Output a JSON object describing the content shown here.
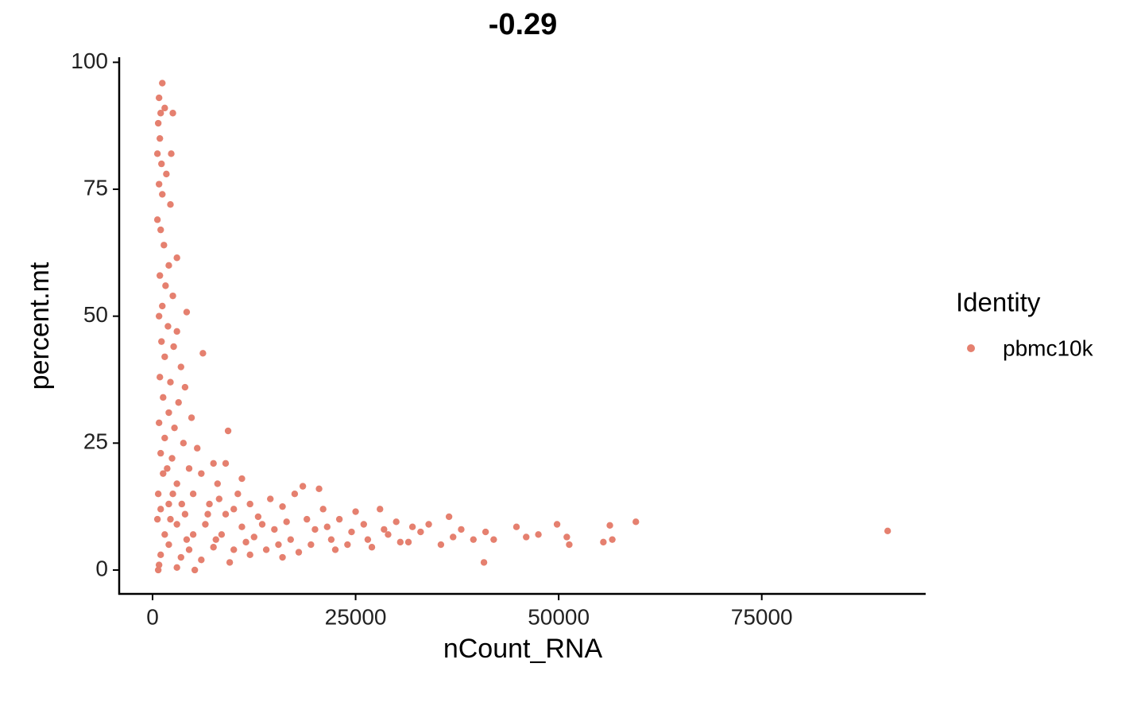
{
  "chart_data": {
    "type": "scatter",
    "title": "-0.29",
    "x_label": "nCount_RNA",
    "y_label": "percent.mt",
    "legend_title": "Identity",
    "legend_position": "right",
    "grid": false,
    "xlim": [
      -4108,
      95180
    ],
    "ylim": [
      -4.7,
      101
    ],
    "xticks": [
      0,
      25000,
      50000,
      75000
    ],
    "yticks": [
      0,
      25,
      50,
      75,
      100
    ],
    "series": [
      {
        "name": "pbmc10k",
        "color": "#e5806f",
        "x": [
          1200,
          800,
          1000,
          1500,
          2500,
          700,
          900,
          600,
          2300,
          1100,
          1700,
          800,
          1200,
          2200,
          600,
          1000,
          1400,
          2000,
          3000,
          900,
          1600,
          2500,
          1200,
          4200,
          800,
          1900,
          3000,
          1100,
          2600,
          6200,
          1500,
          3500,
          900,
          2200,
          4000,
          1300,
          3200,
          2000,
          4800,
          800,
          2700,
          9300,
          1500,
          3800,
          5500,
          1000,
          2400,
          7500,
          4500,
          9000,
          1300,
          6000,
          11000,
          3000,
          8000,
          18500,
          20500,
          700,
          5000,
          10500,
          14500,
          17500,
          2000,
          7000,
          12000,
          16000,
          21000,
          25000,
          28000,
          36500,
          1000,
          4000,
          9000,
          13000,
          19000,
          23000,
          30000,
          34000,
          38000,
          600,
          3000,
          6500,
          11000,
          15000,
          20000,
          24500,
          29000,
          33000,
          37000,
          41000,
          44800,
          49800,
          56300,
          59500,
          90500,
          1500,
          5000,
          8500,
          12500,
          17000,
          22000,
          26500,
          31500,
          35500,
          39500,
          42000,
          46000,
          51000,
          55500,
          56600,
          47500,
          51300,
          40800,
          2000,
          4500,
          7500,
          10000,
          14000,
          18000,
          22500,
          27000,
          1000,
          3500,
          6000,
          9500,
          800,
          3000,
          5200,
          700,
          12000,
          16000,
          2500,
          1800,
          3600,
          6800,
          8200,
          10000,
          13500,
          16500,
          21500,
          26000,
          32000,
          28500,
          2200,
          4200,
          7800,
          11500,
          15500,
          19500,
          24000,
          30500
        ],
        "values": [
          95.9,
          93,
          90,
          91,
          90,
          88,
          85,
          82,
          82,
          80,
          78,
          76,
          74,
          72,
          69,
          67,
          64,
          60,
          61.5,
          58,
          56,
          54,
          52,
          50.8,
          50,
          48,
          47,
          45,
          44,
          42.7,
          42,
          40,
          38,
          37,
          36,
          34,
          33,
          31,
          30,
          29,
          28,
          27.4,
          26,
          25,
          24,
          23,
          22,
          21,
          20,
          21,
          19,
          19,
          18,
          17,
          17,
          16.5,
          16,
          15,
          15,
          15,
          14,
          15,
          13,
          13,
          13,
          12.5,
          12,
          11.5,
          12,
          10.5,
          12,
          11,
          11,
          10.5,
          10,
          10,
          9.5,
          9,
          8,
          10,
          9,
          9,
          8.5,
          8,
          8,
          7.5,
          7,
          7.5,
          6.5,
          7.5,
          8.5,
          9,
          8.8,
          9.5,
          7.7,
          7,
          7,
          7,
          6.5,
          6,
          6,
          6,
          5.5,
          5,
          6,
          6,
          6.5,
          6.5,
          5.5,
          6,
          7,
          5,
          1.5,
          5,
          4,
          4.5,
          4,
          4,
          3.5,
          4,
          4.5,
          3,
          2.5,
          2,
          1.5,
          1,
          0.5,
          0,
          0,
          3,
          2.5,
          15,
          20,
          13,
          11,
          14,
          12,
          9,
          9.5,
          8.5,
          9,
          8.5,
          8,
          10,
          6,
          6,
          5.5,
          5,
          5,
          5,
          5.5
        ]
      }
    ]
  }
}
